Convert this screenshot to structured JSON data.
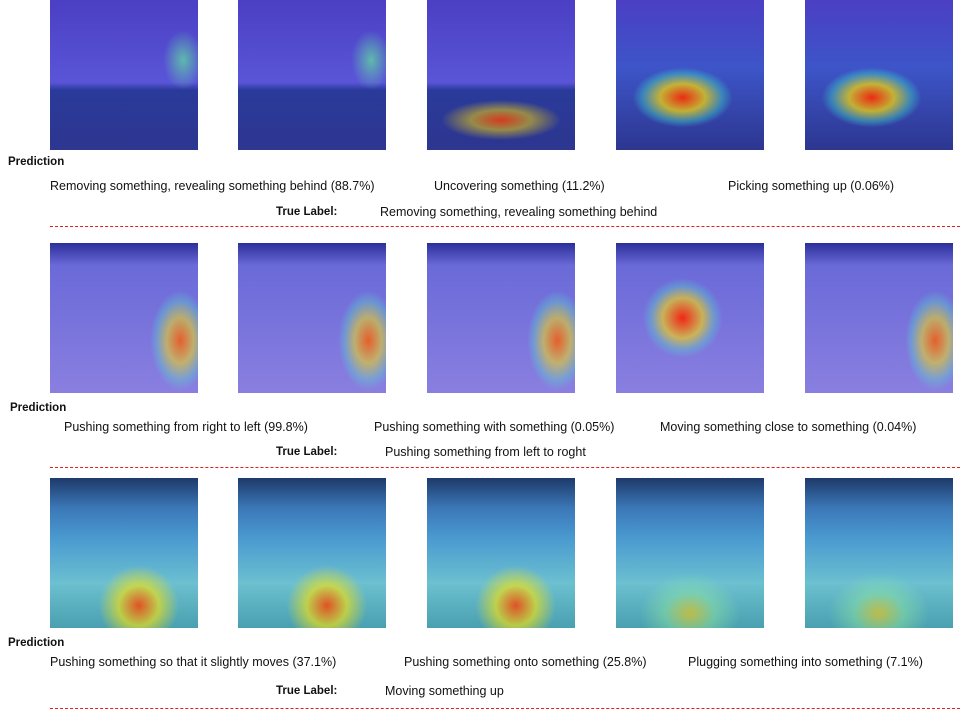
{
  "rows": [
    {
      "prediction_heading": "Prediction",
      "predictions": [
        "Removing something, revealing something behind (88.7%)",
        "Uncovering something (11.2%)",
        "Picking something up (0.06%)"
      ],
      "true_label_heading": "True Label:",
      "true_label": "Removing something, revealing something behind"
    },
    {
      "prediction_heading": "Prediction",
      "predictions": [
        "Pushing something from right to left (99.8%)",
        "Pushing something with something (0.05%)",
        "Moving something close to something (0.04%)"
      ],
      "true_label_heading": "True Label:",
      "true_label": "Pushing something from left to roght"
    },
    {
      "prediction_heading": "Prediction",
      "predictions": [
        "Pushing something so that it slightly moves (37.1%)",
        "Pushing something onto something (25.8%)",
        "Plugging something into something (7.1%)"
      ],
      "true_label_heading": "True Label:",
      "true_label": "Moving something up"
    }
  ]
}
